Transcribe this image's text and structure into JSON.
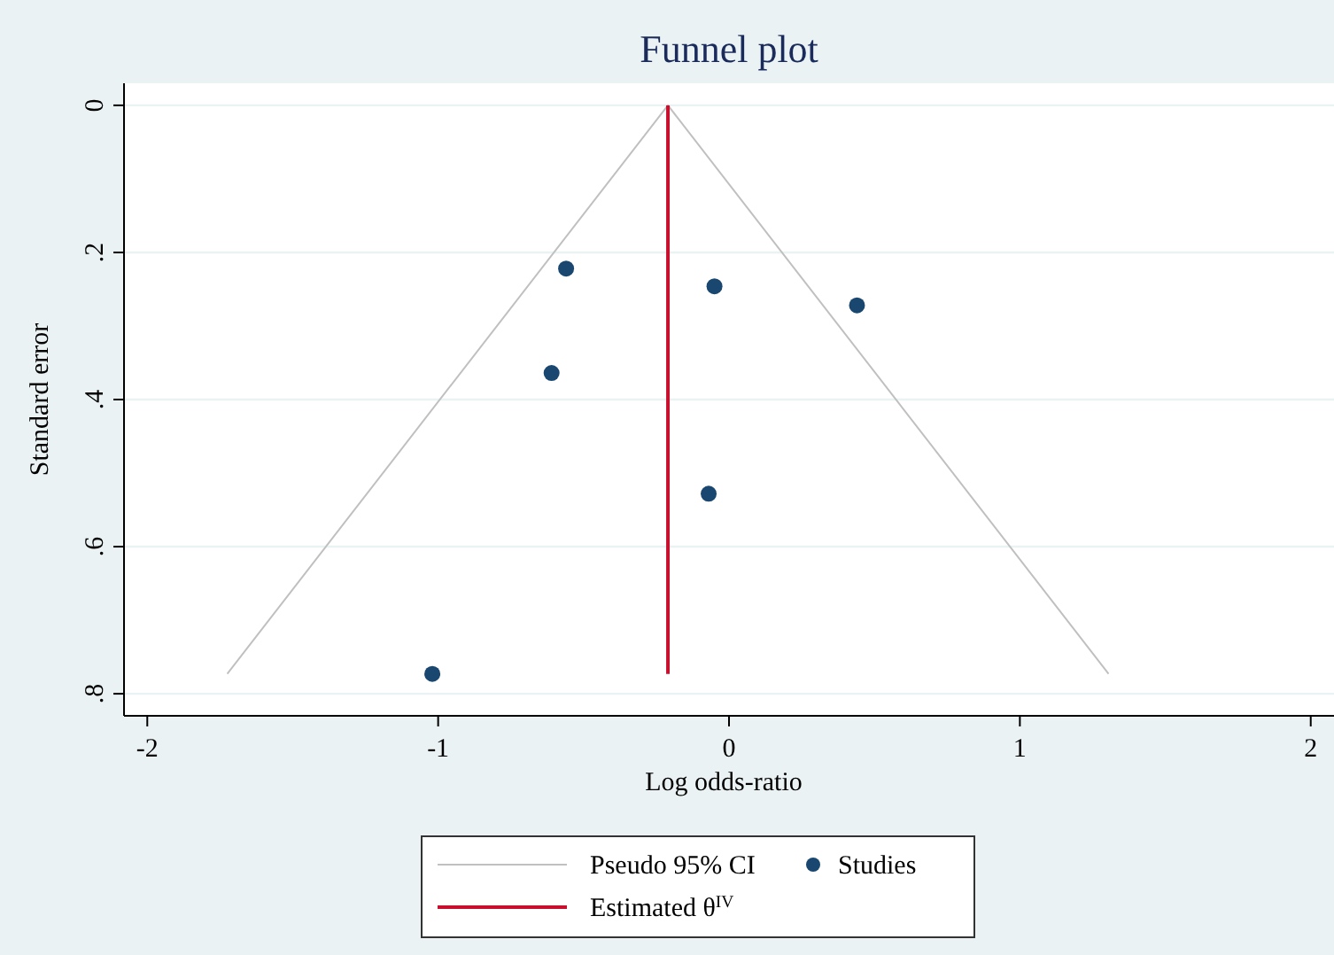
{
  "chart_data": {
    "type": "scatter",
    "title": "Funnel plot",
    "xlabel": "Log odds-ratio",
    "ylabel": "Standard error",
    "xlim": [
      -2.08,
      2.08
    ],
    "xticks": [
      -2,
      -1,
      0,
      1,
      2
    ],
    "ylim": [
      0.83,
      -0.03
    ],
    "yticks": [
      {
        "value": 0,
        "label": "0"
      },
      {
        "value": 0.2,
        "label": ".2"
      },
      {
        "value": 0.4,
        "label": ".4"
      },
      {
        "value": 0.6,
        "label": ".6"
      },
      {
        "value": 0.8,
        "label": ".8"
      }
    ],
    "grid": "y",
    "legend": "bottom",
    "series": [
      {
        "name": "Pseudo 95% CI",
        "type": "line",
        "color": "#c0c0c0",
        "x": [
          -1.725,
          -0.21,
          1.305
        ],
        "values": [
          0.773,
          0,
          0.773
        ]
      },
      {
        "name": "Studies",
        "marker": "circle",
        "color": "#1a476f",
        "x": [
          -0.56,
          -0.05,
          0.44,
          -0.61,
          -0.07,
          -1.02
        ],
        "values": [
          0.222,
          0.246,
          0.272,
          0.364,
          0.528,
          0.773
        ]
      },
      {
        "name": "Estimated θ$^{IV}$",
        "type": "line",
        "color": "#c8102e",
        "x": [
          -0.21,
          -0.21
        ],
        "values": [
          0,
          0.773
        ]
      }
    ]
  }
}
